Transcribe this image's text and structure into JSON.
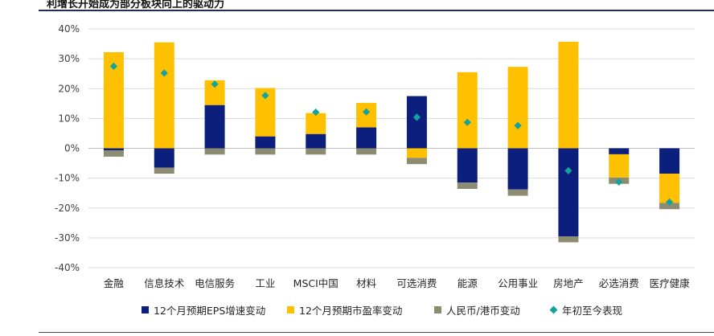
{
  "heading": "利增长开始成为部分板块向上的驱动力",
  "colors": {
    "eps": "#0d1f7c",
    "pe": "#ffc000",
    "fx": "#8c8c72",
    "ytd": "#14a39c",
    "grid": "#d9d9d9",
    "zero": "#bfbfbf"
  },
  "chart_data": {
    "type": "bar",
    "stacked": true,
    "title": "",
    "xlabel": "",
    "ylabel": "",
    "ylim": [
      -40,
      40
    ],
    "yticks": [
      40,
      30,
      20,
      10,
      0,
      -10,
      -20,
      -30,
      -40
    ],
    "ytick_labels": [
      "40%",
      "30%",
      "20%",
      "10%",
      "0%",
      "-10%",
      "-20%",
      "-30%",
      "-40%"
    ],
    "grid": true,
    "legend_position": "bottom",
    "categories": [
      "金融",
      "信息技术",
      "电信服务",
      "工业",
      "MSCI中国",
      "材料",
      "可选消费",
      "能源",
      "公用事业",
      "房地产",
      "必选消费",
      "医疗健康"
    ],
    "series": [
      {
        "name": "12个月预期EPS增速变动",
        "kind": "bar",
        "values": [
          -0.7,
          -6.5,
          14.5,
          4.0,
          4.8,
          7.0,
          17.5,
          -11.5,
          -13.8,
          -29.5,
          -2.0,
          -8.5
        ]
      },
      {
        "name": "12个月预期市盈率变动",
        "kind": "bar",
        "values": [
          32.2,
          35.5,
          8.3,
          16.2,
          7.0,
          8.2,
          -3.2,
          25.5,
          27.3,
          35.7,
          -7.8,
          -9.8
        ]
      },
      {
        "name": "人民币/港币变动",
        "kind": "bar",
        "values": [
          -2.1,
          -2.0,
          -2.1,
          -2.1,
          -2.1,
          -2.1,
          -2.1,
          -2.1,
          -2.1,
          -2.0,
          -2.1,
          -2.1
        ]
      },
      {
        "name": "年初至今表现",
        "kind": "scatter",
        "values": [
          27.5,
          25.2,
          21.5,
          17.7,
          12.1,
          12.2,
          10.4,
          8.7,
          7.6,
          -7.5,
          -11.3,
          -18.0
        ]
      }
    ]
  }
}
